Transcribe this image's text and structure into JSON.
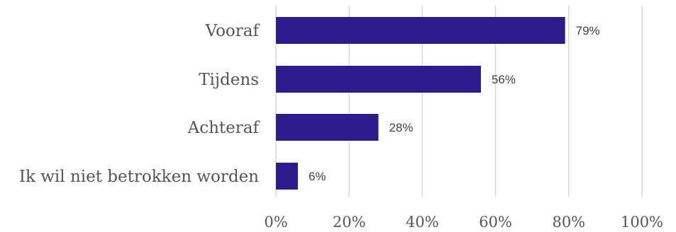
{
  "chart_data": {
    "type": "bar",
    "orientation": "horizontal",
    "categories": [
      "Vooraf",
      "Tijdens",
      "Achteraf",
      "Ik wil niet betrokken worden"
    ],
    "values": [
      79,
      56,
      28,
      6
    ],
    "value_labels": [
      "79%",
      "56%",
      "28%",
      "6%"
    ],
    "xlim": [
      0,
      100
    ],
    "x_ticks": [
      0,
      20,
      40,
      60,
      80,
      100
    ],
    "x_tick_labels": [
      "0%",
      "20%",
      "40%",
      "60%",
      "80%",
      "100%"
    ],
    "grid": true,
    "legend": "none",
    "title": "",
    "xlabel": "",
    "ylabel": "",
    "colors": {
      "bar": "#2e1b8a",
      "grid": "#d9d9d9",
      "text": "#555555"
    }
  }
}
